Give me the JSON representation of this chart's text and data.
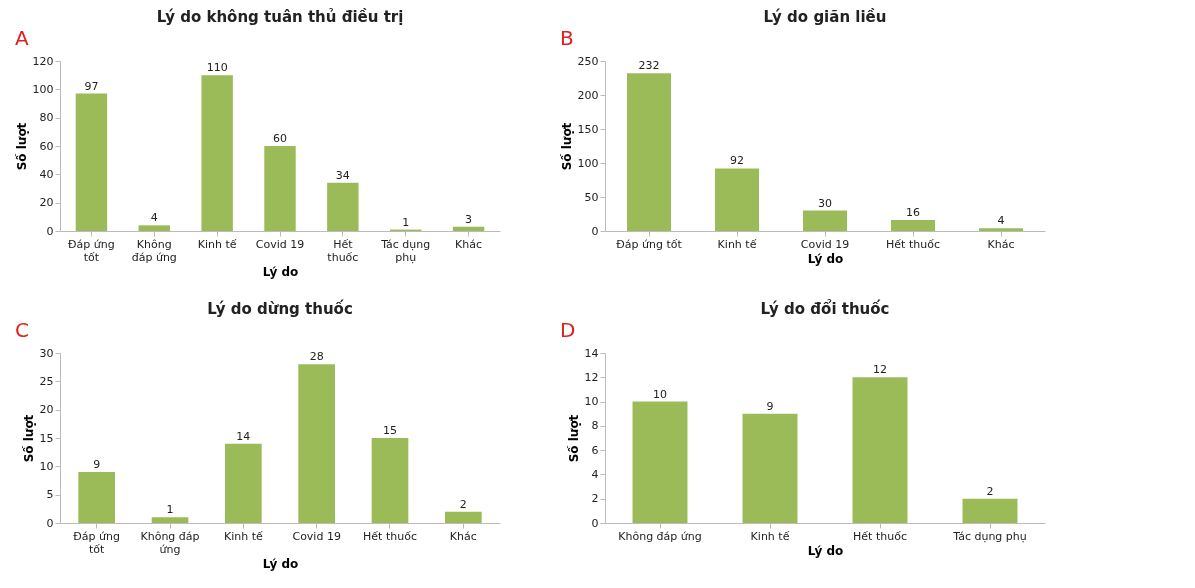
{
  "chart_data": [
    {
      "type": "bar",
      "title": "Lý do không tuân thủ điều trị",
      "xlabel": "Lý do",
      "ylabel": "Số lượt",
      "annotations": [
        "A"
      ],
      "categories": [
        "Đáp ứng tốt",
        "Không đáp ứng",
        "Kinh tế",
        "Covid 19",
        "Hết thuốc",
        "Tác dụng phụ",
        "Khác"
      ],
      "values": [
        97,
        4,
        110,
        60,
        34,
        1,
        3
      ],
      "color": "#9bbb59",
      "data_labels": true,
      "ylim": [
        0,
        120
      ],
      "yticks": [
        0,
        20,
        40,
        60,
        80,
        100,
        120
      ],
      "grid": false
    },
    {
      "type": "bar",
      "title": "Lý do giãn liều",
      "xlabel": "Lý do",
      "ylabel": "Số lượt",
      "annotations": [
        "B"
      ],
      "categories": [
        "Đáp ứng tốt",
        "Kinh tế",
        "Covid 19",
        "Hết thuốc",
        "Khác"
      ],
      "values": [
        232,
        92,
        30,
        16,
        4
      ],
      "color": "#9bbb59",
      "data_labels": true,
      "ylim": [
        0,
        250
      ],
      "yticks": [
        0,
        50,
        100,
        150,
        200,
        250
      ],
      "grid": false
    },
    {
      "type": "bar",
      "title": "Lý do dừng thuốc",
      "xlabel": "Lý do",
      "ylabel": "Số lượt",
      "annotations": [
        "C"
      ],
      "categories": [
        "Đáp ứng tốt",
        "Không đáp ứng",
        "Kinh tế",
        "Covid 19",
        "Hết thuốc",
        "Khác"
      ],
      "values": [
        9,
        1,
        14,
        28,
        15,
        2
      ],
      "color": "#9bbb59",
      "data_labels": true,
      "ylim": [
        0,
        30
      ],
      "yticks": [
        0,
        5,
        10,
        15,
        20,
        25,
        30
      ],
      "grid": false
    },
    {
      "type": "bar",
      "title": "Lý do đổi thuốc",
      "xlabel": "Lý do",
      "ylabel": "Số lượt",
      "annotations": [
        "D"
      ],
      "categories": [
        "Không đáp ứng",
        "Kinh tế",
        "Hết thuốc",
        "Tác dụng phụ"
      ],
      "values": [
        10,
        9,
        12,
        2
      ],
      "color": "#9bbb59",
      "data_labels": true,
      "ylim": [
        0,
        14
      ],
      "yticks": [
        0,
        2,
        4,
        6,
        8,
        10,
        12,
        14
      ],
      "grid": false
    }
  ]
}
